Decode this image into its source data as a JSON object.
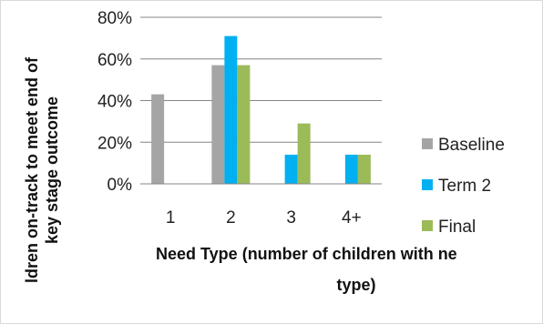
{
  "chart_data": {
    "type": "bar",
    "title": "",
    "xlabel_lines": [
      "Need Type (number of children with ne",
      "type)"
    ],
    "ylabel_lines": [
      "ldren on-track to meet end of",
      "key stage outcome"
    ],
    "categories": [
      "1",
      "2",
      "3",
      "4+"
    ],
    "series": [
      {
        "name": "Baseline",
        "color": "#a5a5a5",
        "values": [
          43,
          57,
          0,
          0
        ]
      },
      {
        "name": "Term 2",
        "color": "#00b0f0",
        "values": [
          0,
          71,
          14,
          14
        ]
      },
      {
        "name": "Final",
        "color": "#9bbb59",
        "values": [
          0,
          57,
          29,
          14
        ]
      }
    ],
    "ylim": [
      0,
      80
    ],
    "yticks": [
      0,
      20,
      40,
      60,
      80
    ],
    "ytick_labels": [
      "0%",
      "20%",
      "40%",
      "60%",
      "80%"
    ],
    "grid": true,
    "legend_position": "right"
  }
}
